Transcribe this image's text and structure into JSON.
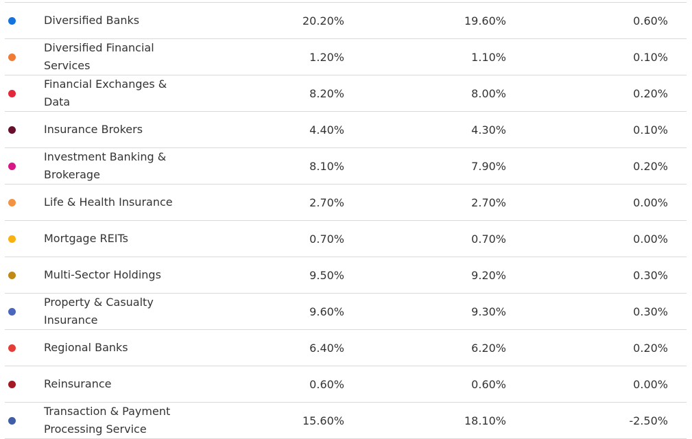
{
  "rows": [
    {
      "name": "Diversified Banks",
      "v1": "20.20%",
      "v2": "19.60%",
      "v3": "0.60%",
      "color": "#1672dd"
    },
    {
      "name": "Diversified Financial Services",
      "v1": "1.20%",
      "v2": "1.10%",
      "v3": "0.10%",
      "color": "#f07b35"
    },
    {
      "name": "Financial Exchanges & Data",
      "v1": "8.20%",
      "v2": "8.00%",
      "v3": "0.20%",
      "color": "#e2293a"
    },
    {
      "name": "Insurance Brokers",
      "v1": "4.40%",
      "v2": "4.30%",
      "v3": "0.10%",
      "color": "#6a0e2e"
    },
    {
      "name": "Investment Banking & Brokerage",
      "v1": "8.10%",
      "v2": "7.90%",
      "v3": "0.20%",
      "color": "#d51886"
    },
    {
      "name": "Life & Health Insurance",
      "v1": "2.70%",
      "v2": "2.70%",
      "v3": "0.00%",
      "color": "#f39243"
    },
    {
      "name": "Mortgage REITs",
      "v1": "0.70%",
      "v2": "0.70%",
      "v3": "0.00%",
      "color": "#f9b112"
    },
    {
      "name": "Multi-Sector Holdings",
      "v1": "9.50%",
      "v2": "9.20%",
      "v3": "0.30%",
      "color": "#c18813"
    },
    {
      "name": "Property & Casualty Insurance",
      "v1": "9.60%",
      "v2": "9.30%",
      "v3": "0.30%",
      "color": "#4a66bd"
    },
    {
      "name": "Regional Banks",
      "v1": "6.40%",
      "v2": "6.20%",
      "v3": "0.20%",
      "color": "#e53d36"
    },
    {
      "name": "Reinsurance",
      "v1": "0.60%",
      "v2": "0.60%",
      "v3": "0.00%",
      "color": "#a31a26"
    },
    {
      "name": "Transaction & Payment Processing Service",
      "v1": "15.60%",
      "v2": "18.10%",
      "v3": "-2.50%",
      "color": "#3f5ea6"
    }
  ]
}
